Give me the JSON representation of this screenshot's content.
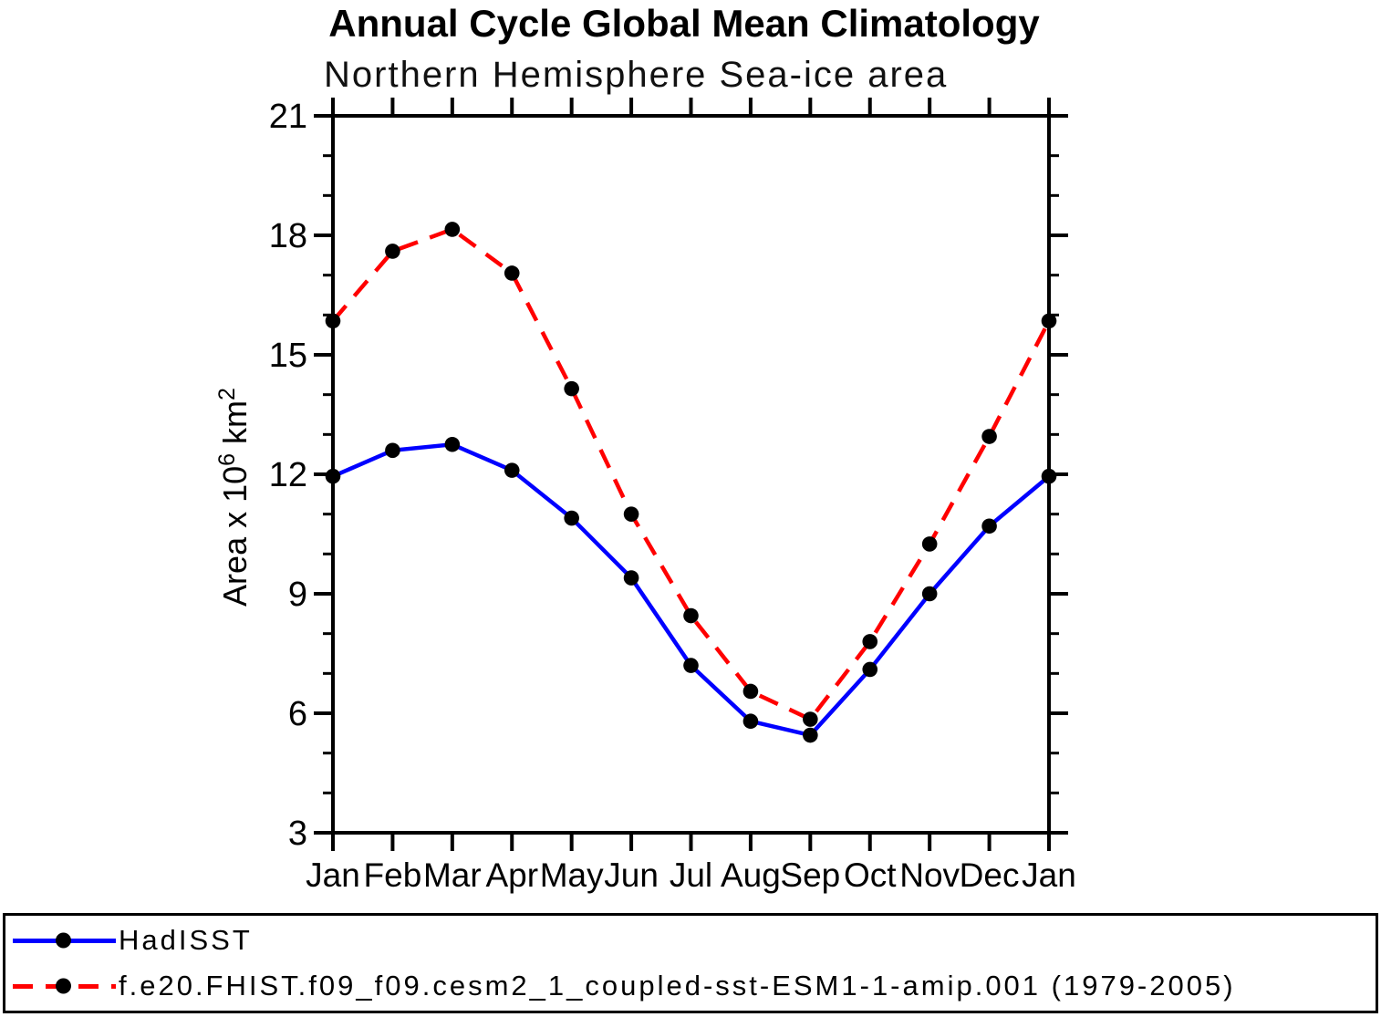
{
  "title": "Annual Cycle Global Mean Climatology",
  "subtitle": "Northern Hemisphere Sea-ice area",
  "chart_data": {
    "type": "line",
    "categories": [
      "Jan",
      "Feb",
      "Mar",
      "Apr",
      "May",
      "Jun",
      "Jul",
      "Aug",
      "Sep",
      "Oct",
      "Nov",
      "Dec",
      "Jan"
    ],
    "series": [
      {
        "name": "HadISST",
        "color": "#0000ff",
        "line_style": "solid",
        "marker": "filled-circle",
        "marker_color": "#000000",
        "values": [
          11.95,
          12.6,
          12.75,
          12.1,
          10.9,
          9.4,
          7.2,
          5.8,
          5.45,
          7.1,
          9.0,
          10.7,
          11.95
        ]
      },
      {
        "name": "f.e20.FHIST.f09_f09.cesm2_1_coupled-sst-ESM1-1-amip.001 (1979-2005)",
        "color": "#ff0000",
        "line_style": "dashed",
        "marker": "filled-circle",
        "marker_color": "#000000",
        "values": [
          15.85,
          17.6,
          18.15,
          17.05,
          14.15,
          11.0,
          8.45,
          6.55,
          5.85,
          7.8,
          10.25,
          12.95,
          15.85
        ]
      }
    ],
    "xlabel": "",
    "ylabel": "Area x 10^6 km^2",
    "ylabel_parts": [
      {
        "text": "Area x 10",
        "sup": false
      },
      {
        "text": "6",
        "sup": true
      },
      {
        "text": " km",
        "sup": false
      },
      {
        "text": "2",
        "sup": true
      }
    ],
    "ylim": [
      3,
      21
    ],
    "yticks_major": [
      3,
      6,
      9,
      12,
      15,
      18,
      21
    ],
    "ytick_minor_step": 1,
    "grid": false,
    "legend_position": "bottom",
    "axis_color": "#000000"
  },
  "legend": {
    "entries": [
      {
        "label": "HadISST"
      },
      {
        "label": "f.e20.FHIST.f09_f09.cesm2_1_coupled-sst-ESM1-1-amip.001 (1979-2005)"
      }
    ]
  }
}
